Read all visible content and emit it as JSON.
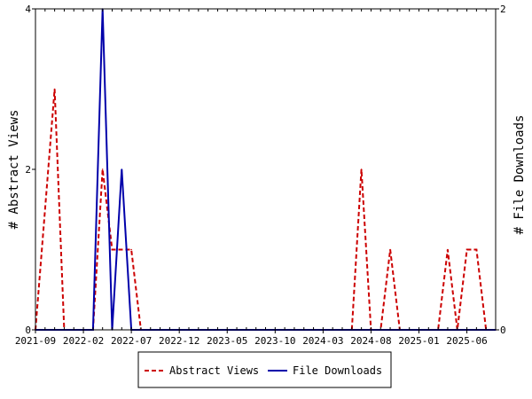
{
  "chart_data": {
    "type": "line",
    "xlabel": "",
    "ylabel": "# Abstract Views",
    "y2label": "# File Downloads",
    "ylim": [
      0,
      4
    ],
    "y2lim": [
      0,
      2
    ],
    "y_ticks": [
      "0",
      "2",
      "4"
    ],
    "y2_ticks": [
      "0",
      "2"
    ],
    "x_range": [
      "2021-09",
      "2025-09"
    ],
    "x_tick_labels": [
      "2021-09",
      "2022-02",
      "2022-07",
      "2022-12",
      "2023-05",
      "2023-10",
      "2024-03",
      "2024-08",
      "2025-01",
      "2025-06"
    ],
    "legend_position": "bottom",
    "grid": false,
    "series": [
      {
        "name": "Abstract Views",
        "axis": "left",
        "color": "#cc0000",
        "style": "dashed",
        "x": [
          "2021-09",
          "2021-11",
          "2021-12",
          "2022-01",
          "2022-02",
          "2022-03",
          "2022-04",
          "2022-05",
          "2022-06",
          "2022-07",
          "2022-08",
          "2022-09",
          "2022-10",
          "2022-11",
          "2022-12",
          "2023-01",
          "2023-02",
          "2023-03",
          "2023-04",
          "2023-05",
          "2023-06",
          "2023-07",
          "2023-08",
          "2023-09",
          "2023-10",
          "2023-11",
          "2023-12",
          "2024-01",
          "2024-02",
          "2024-03",
          "2024-04",
          "2024-05",
          "2024-06",
          "2024-07",
          "2024-08",
          "2024-09",
          "2024-10",
          "2024-11",
          "2024-12",
          "2025-01",
          "2025-02",
          "2025-03",
          "2025-04",
          "2025-05",
          "2025-06",
          "2025-07",
          "2025-08",
          "2025-09"
        ],
        "values": [
          0,
          3,
          0,
          0,
          0,
          0,
          2,
          1,
          1,
          1,
          0,
          0,
          0,
          0,
          0,
          0,
          0,
          0,
          0,
          0,
          0,
          0,
          0,
          0,
          0,
          0,
          0,
          0,
          0,
          0,
          0,
          0,
          0,
          2,
          0,
          0,
          1,
          0,
          0,
          0,
          0,
          0,
          1,
          0,
          1,
          1,
          0,
          0
        ]
      },
      {
        "name": "File Downloads",
        "axis": "right",
        "color": "#0000aa",
        "style": "solid",
        "x": [
          "2021-09",
          "2022-03",
          "2022-04",
          "2022-05",
          "2022-06",
          "2022-07",
          "2025-09"
        ],
        "values": [
          0,
          0,
          2,
          0,
          1,
          0,
          0
        ]
      }
    ]
  }
}
